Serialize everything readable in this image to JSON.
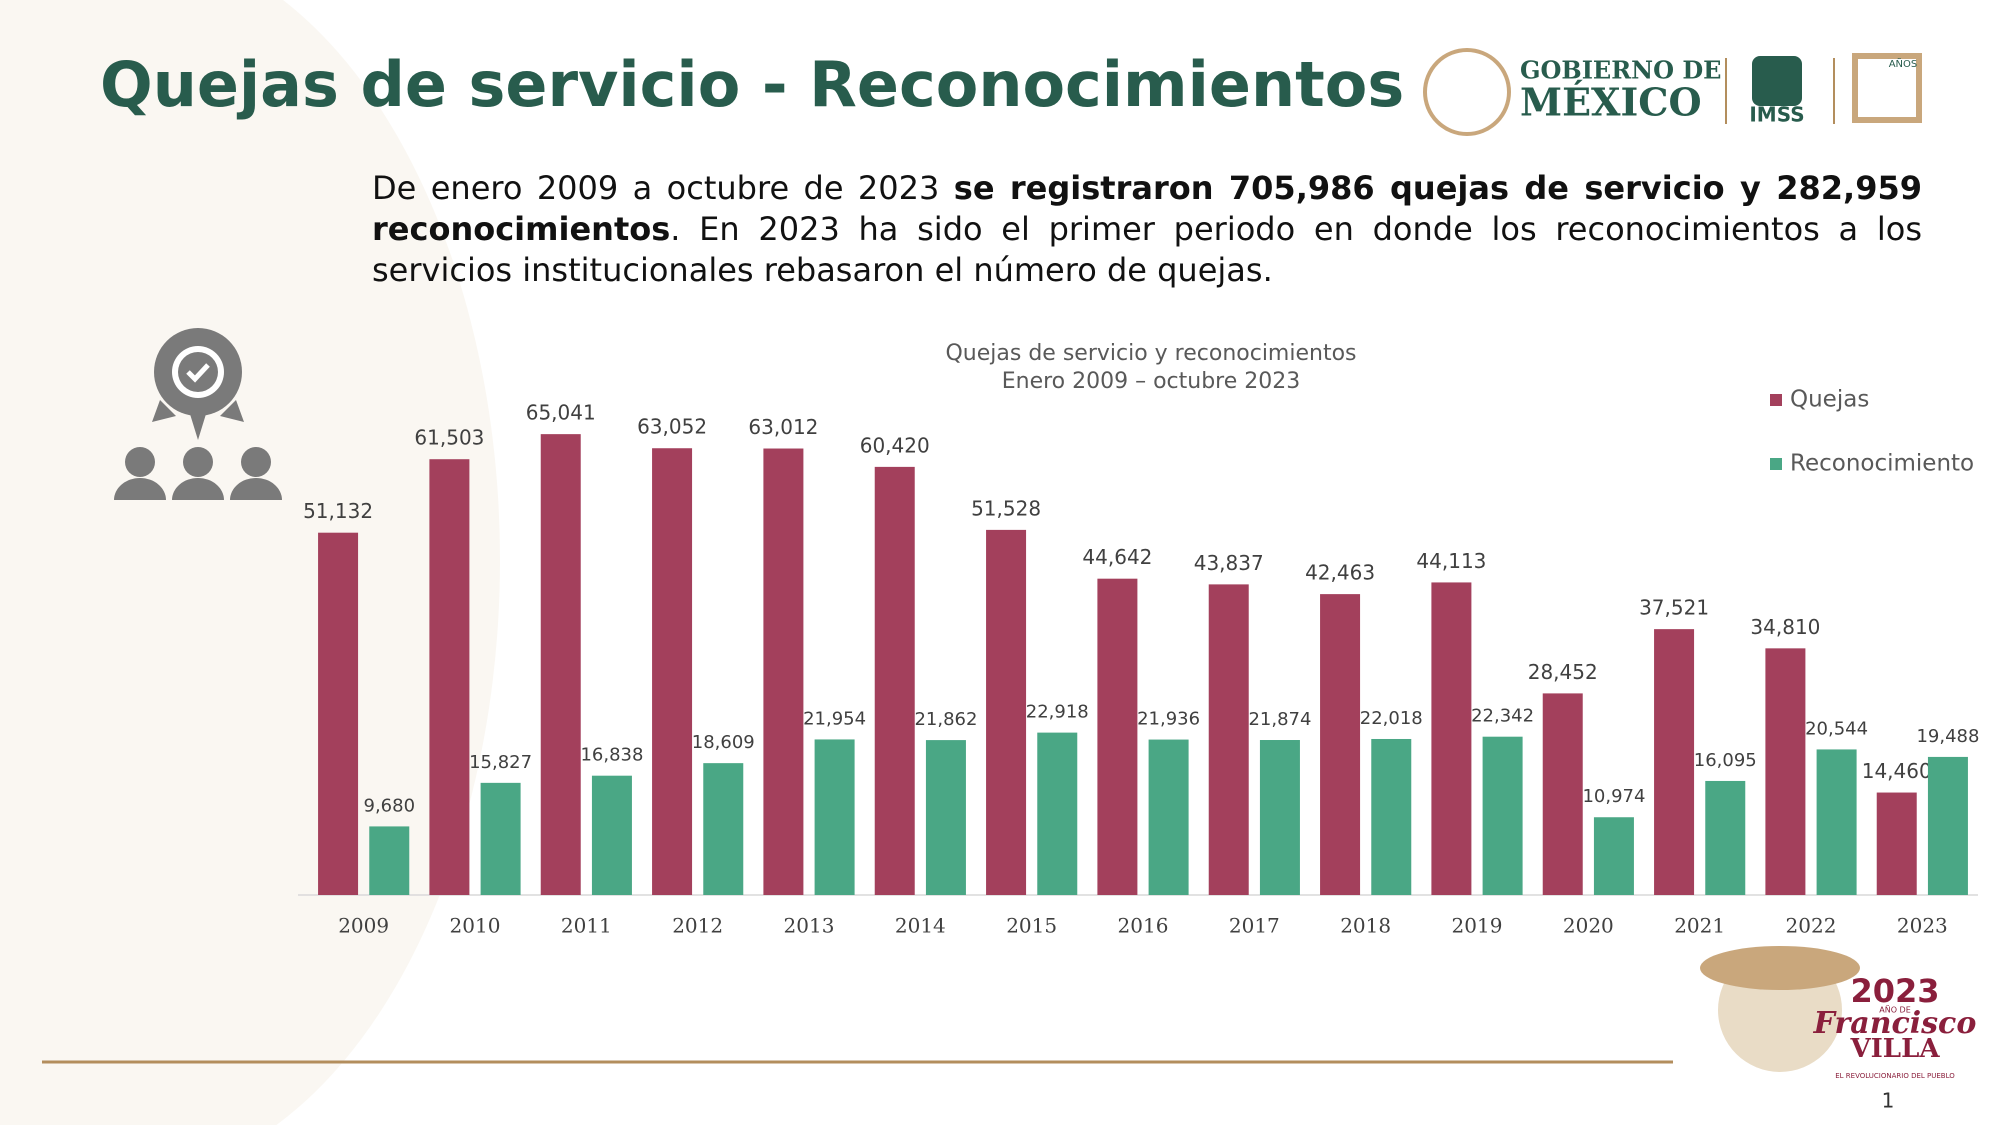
{
  "header": {
    "title": "Quejas de servicio - Reconocimientos"
  },
  "intro": [
    "De enero 2009 a octubre de 2023 ",
    "se registraron 705,986 quejas de servicio y 282,959 reconocimientos",
    ". En 2023 ha sido el primer periodo en donde los reconocimientos a los servicios institucionales rebasaron el número de quejas."
  ],
  "logos": {
    "gobierno": "GOBIERNO DE",
    "mexico": "MÉXICO",
    "imss": "IMSS",
    "anos": "AÑOS",
    "year": "2023",
    "ano_de": "AÑO DE",
    "francisco": "Francisco",
    "villa": "VILLA",
    "tagline": "EL REVOLUCIONARIO DEL PUEBLO"
  },
  "page_number": "1",
  "chart_data": {
    "type": "bar",
    "title": "Quejas de servicio y reconocimientos",
    "subtitle": "Enero 2009 – octubre 2023",
    "categories": [
      "2009",
      "2010",
      "2011",
      "2012",
      "2013",
      "2014",
      "2015",
      "2016",
      "2017",
      "2018",
      "2019",
      "2020",
      "2021",
      "2022",
      "2023"
    ],
    "series": [
      {
        "name": "Quejas",
        "color": "#a3405c",
        "values": [
          51132,
          61503,
          65041,
          63052,
          63012,
          60420,
          51528,
          44642,
          43837,
          42463,
          44113,
          28452,
          37521,
          34810,
          14460
        ],
        "value_labels": [
          "51,132",
          "61,503",
          "65,041",
          "63,052",
          "63,012",
          "60,420",
          "51,528",
          "44,642",
          "43,837",
          "42,463",
          "44,113",
          "28,452",
          "37,521",
          "34,810",
          "14,460"
        ]
      },
      {
        "name": "Reconocimiento",
        "color": "#4aa785",
        "values": [
          9680,
          15827,
          16838,
          18609,
          21954,
          21862,
          22918,
          21936,
          21874,
          22018,
          22342,
          10974,
          16095,
          20544,
          19488
        ],
        "value_labels": [
          "9,680",
          "15,827",
          "16,838",
          "18,609",
          "21,954",
          "21,862",
          "22,918",
          "21,936",
          "21,874",
          "22,018",
          "22,342",
          "10,974",
          "16,095",
          "20,544",
          "19,488"
        ]
      }
    ],
    "ylim": [
      0,
      70000
    ],
    "legend": "top-right"
  }
}
